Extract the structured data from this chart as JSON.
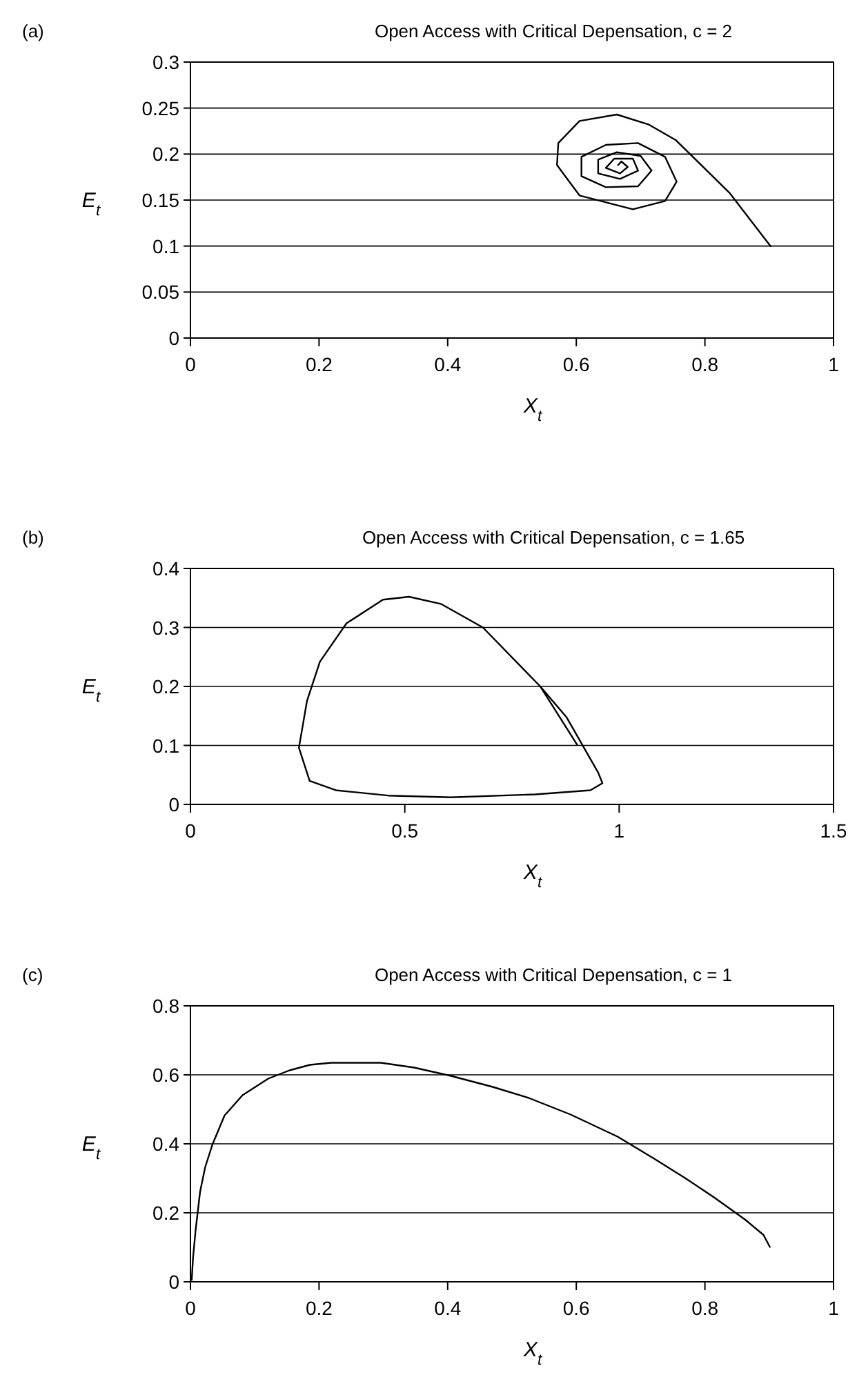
{
  "chart_data": [
    {
      "type": "line",
      "title": "Open Access with Critical Depensation, c = 2",
      "xlabel": "X$_{t}$",
      "ylabel": "E$_{t}$",
      "annotations": [
        "(a)"
      ],
      "grid": "y",
      "marker": "none",
      "line_style": "solid",
      "xlim": [
        0,
        1
      ],
      "ylim": [
        0,
        0.3
      ],
      "xticks": [
        0,
        0.2,
        0.4,
        0.6,
        0.8,
        1
      ],
      "yticks": [
        0,
        0.05,
        0.1,
        0.15,
        0.2,
        0.25,
        0.3
      ],
      "series": [
        {
          "color": "#000000",
          "x": [
            0.902,
            0.838,
            0.755,
            0.713,
            0.663,
            0.605,
            0.572,
            0.57,
            0.605,
            0.688,
            0.738,
            0.756,
            0.738,
            0.696,
            0.646,
            0.608,
            0.608,
            0.646,
            0.696,
            0.717,
            0.7,
            0.663,
            0.634,
            0.634,
            0.668,
            0.696,
            0.688,
            0.659,
            0.646,
            0.668,
            0.68,
            0.67,
            0.665
          ],
          "values": [
            0.1,
            0.158,
            0.215,
            0.232,
            0.243,
            0.236,
            0.212,
            0.188,
            0.155,
            0.14,
            0.149,
            0.17,
            0.197,
            0.212,
            0.21,
            0.197,
            0.176,
            0.164,
            0.165,
            0.182,
            0.198,
            0.202,
            0.194,
            0.179,
            0.173,
            0.182,
            0.195,
            0.195,
            0.185,
            0.179,
            0.186,
            0.192,
            0.188
          ]
        }
      ]
    },
    {
      "type": "line",
      "title": "Open Access with Critical Depensation, c = 1.65",
      "xlabel": "X$_{t}$",
      "ylabel": "E$_{t}$",
      "annotations": [
        "(b)"
      ],
      "grid": "y",
      "marker": "none",
      "line_style": "solid",
      "xlim": [
        0,
        1.5
      ],
      "ylim": [
        0,
        0.4
      ],
      "xticks": [
        0,
        0.5,
        1,
        1.5
      ],
      "yticks": [
        0,
        0.1,
        0.2,
        0.3,
        0.4
      ],
      "series": [
        {
          "color": "#000000",
          "x": [
            0.902,
            0.816,
            0.682,
            0.584,
            0.51,
            0.449,
            0.364,
            0.302,
            0.272,
            0.253,
            0.278,
            0.339,
            0.461,
            0.608,
            0.804,
            0.933,
            0.961,
            0.951,
            0.914,
            0.877,
            0.816,
            0.682,
            0.584,
            0.51,
            0.449,
            0.364,
            0.302,
            0.272,
            0.253,
            0.278,
            0.339,
            0.461,
            0.608,
            0.804,
            0.933,
            0.961,
            0.951,
            0.914,
            0.877
          ],
          "values": [
            0.101,
            0.2,
            0.3,
            0.34,
            0.352,
            0.347,
            0.307,
            0.242,
            0.176,
            0.096,
            0.04,
            0.024,
            0.015,
            0.012,
            0.017,
            0.024,
            0.036,
            0.054,
            0.101,
            0.148,
            0.2,
            0.3,
            0.34,
            0.352,
            0.347,
            0.307,
            0.242,
            0.176,
            0.096,
            0.04,
            0.024,
            0.015,
            0.012,
            0.017,
            0.024,
            0.036,
            0.054,
            0.101,
            0.148
          ]
        }
      ]
    },
    {
      "type": "line",
      "title": "Open Access with Critical Depensation, c = 1",
      "xlabel": "X$_{t}$",
      "ylabel": "E$_{t}$",
      "annotations": [
        "(c)"
      ],
      "grid": "y",
      "marker": "none",
      "line_style": "solid",
      "xlim": [
        0,
        1
      ],
      "ylim": [
        0,
        0.8
      ],
      "xticks": [
        0,
        0.2,
        0.4,
        0.6,
        0.8,
        1
      ],
      "yticks": [
        0,
        0.2,
        0.4,
        0.6,
        0.8
      ],
      "series": [
        {
          "color": "#000000",
          "x": [
            0.002,
            0.004,
            0.008,
            0.015,
            0.023,
            0.034,
            0.053,
            0.081,
            0.121,
            0.154,
            0.186,
            0.219,
            0.296,
            0.348,
            0.405,
            0.47,
            0.526,
            0.591,
            0.664,
            0.721,
            0.769,
            0.814,
            0.862,
            0.891,
            0.901
          ],
          "values": [
            0.005,
            0.069,
            0.149,
            0.261,
            0.333,
            0.397,
            0.482,
            0.541,
            0.589,
            0.613,
            0.629,
            0.635,
            0.635,
            0.621,
            0.597,
            0.565,
            0.533,
            0.485,
            0.421,
            0.357,
            0.301,
            0.245,
            0.181,
            0.136,
            0.101
          ]
        }
      ]
    }
  ]
}
